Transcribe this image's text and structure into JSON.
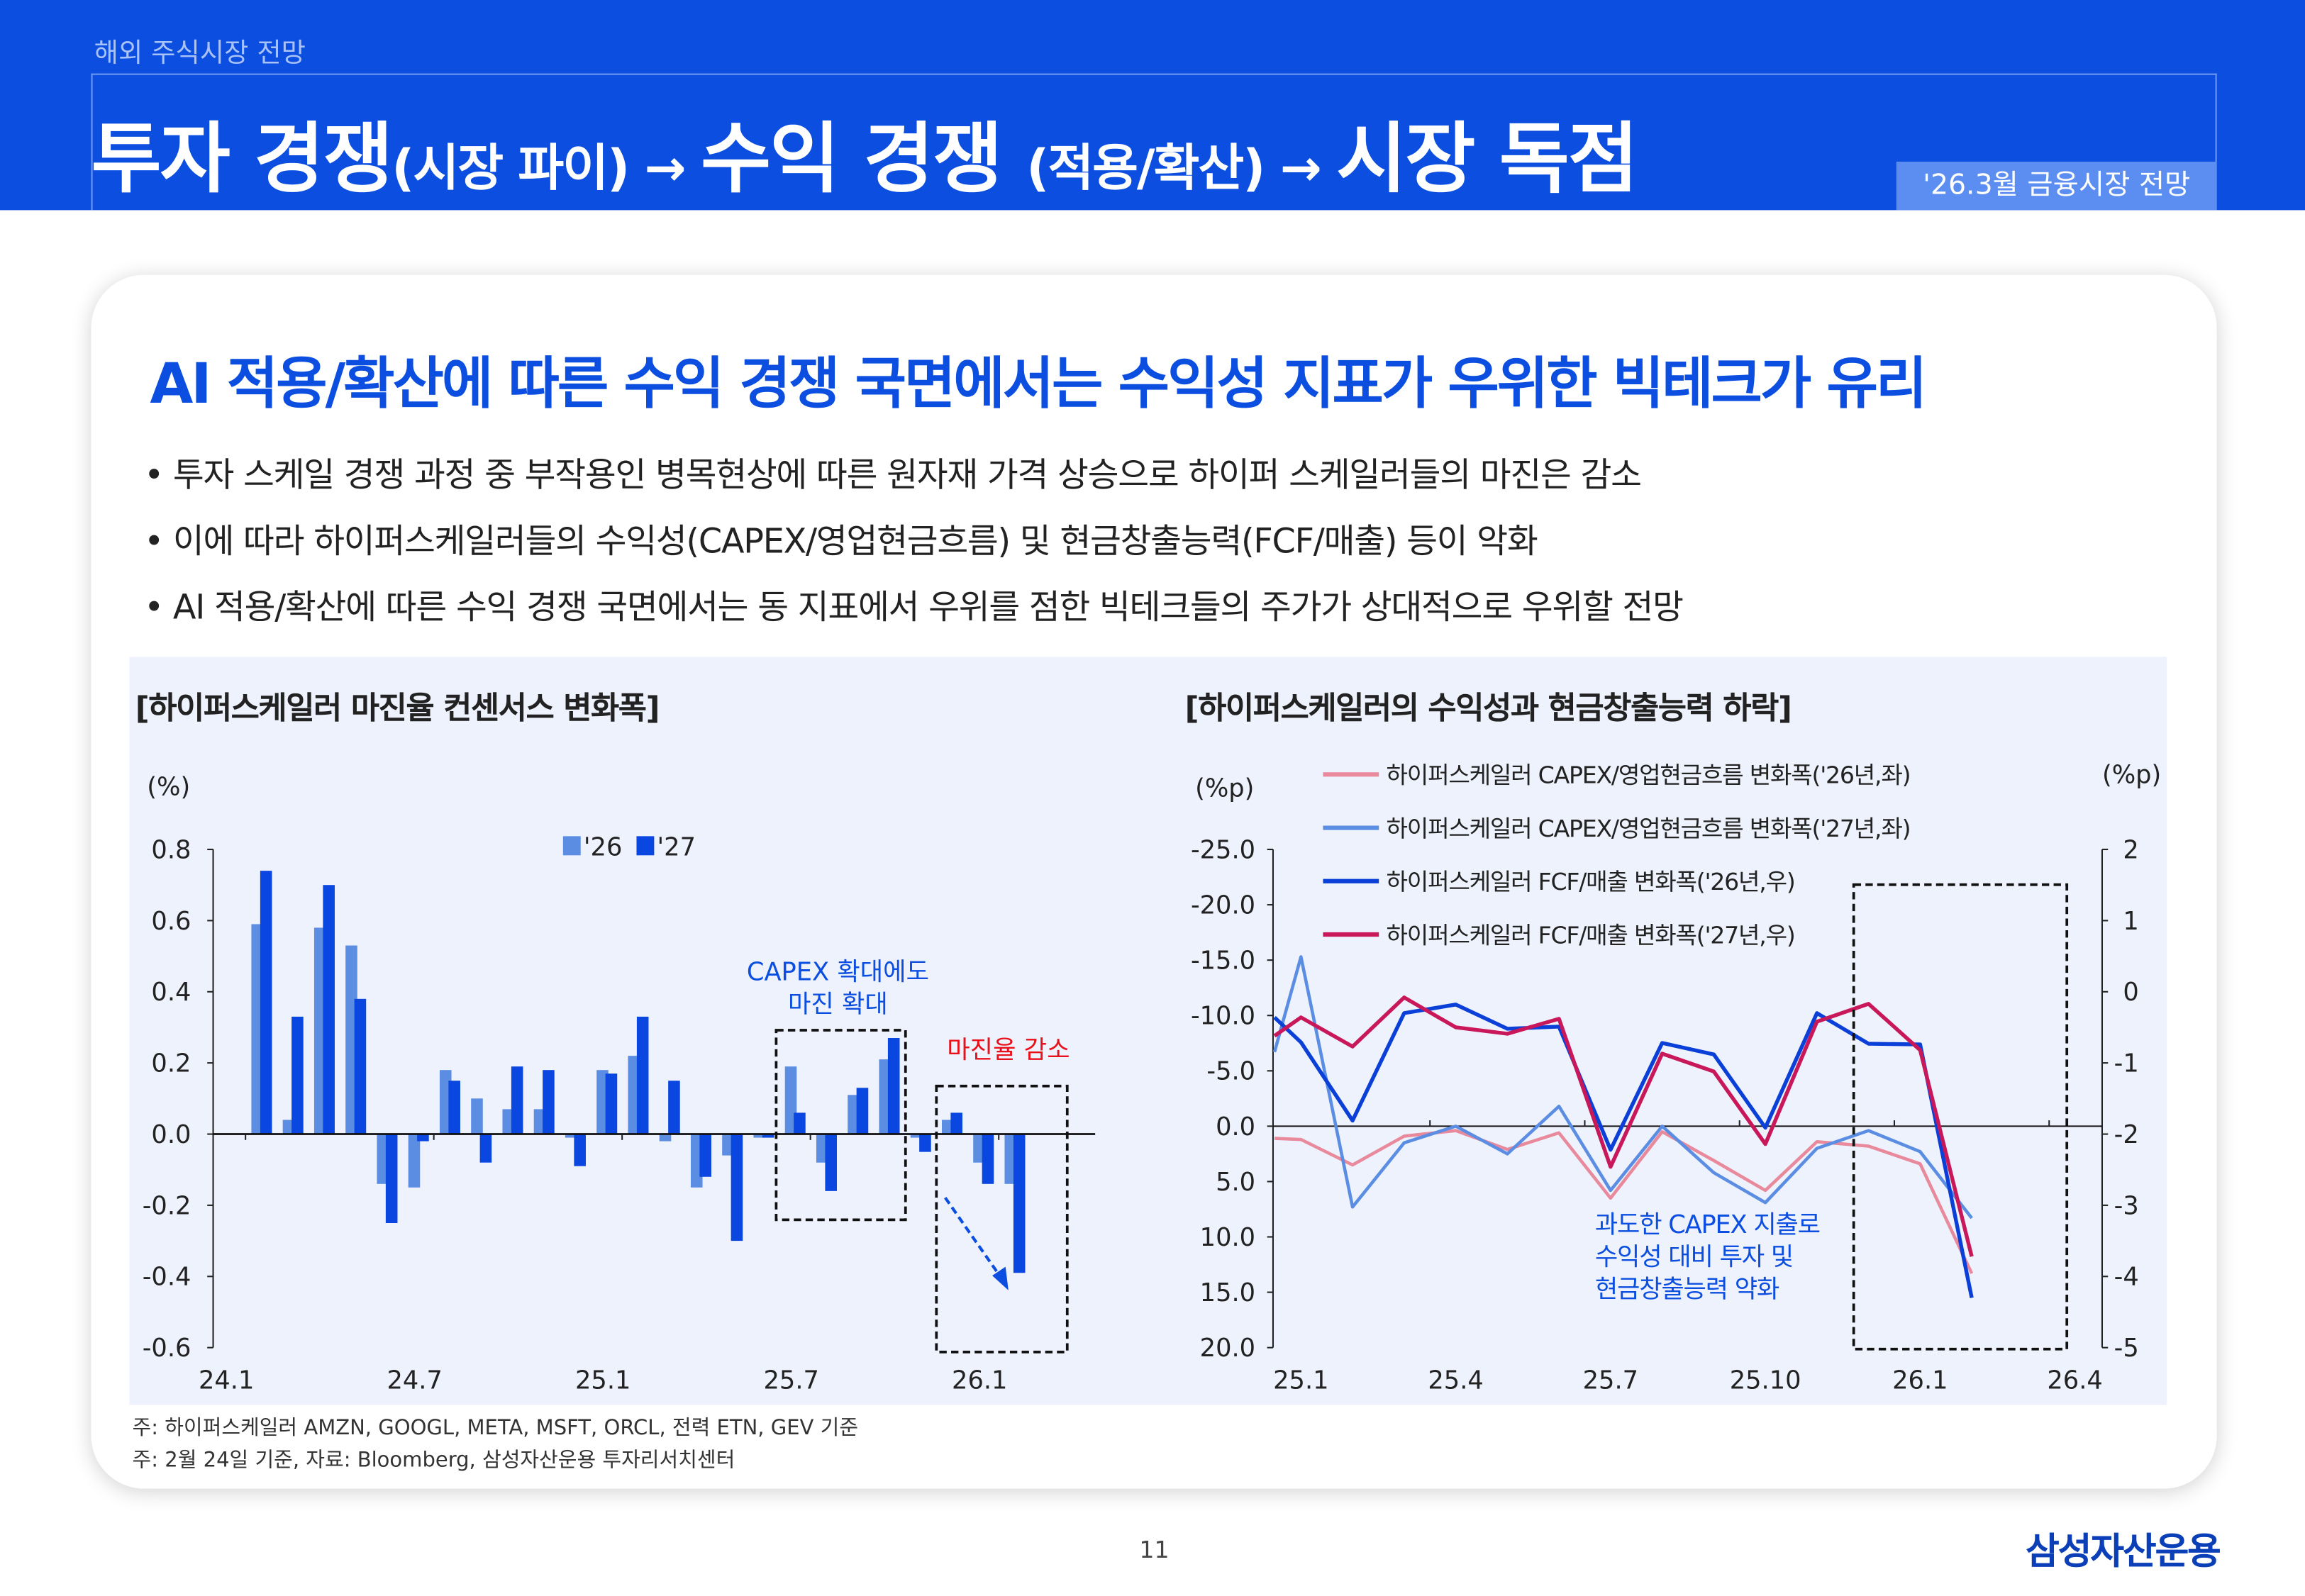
{
  "header": {
    "section": "해외 주식시장 전망",
    "title": [
      {
        "text": "투자 경쟁",
        "size": "b"
      },
      {
        "text": "(시장 파이) → ",
        "size": "s"
      },
      {
        "text": "수익 경쟁 ",
        "size": "b"
      },
      {
        "text": "(적용/확산) → ",
        "size": "s"
      },
      {
        "text": "시장 독점",
        "size": "b"
      }
    ],
    "badge": "'26.3월 금융시장 전망"
  },
  "heading": "AI 적용/확산에 따른 수익 경쟁 국면에서는 수익성 지표가 우위한 빅테크가 유리",
  "bullets": [
    "• 투자 스케일 경쟁 과정 중 부작용인 병목현상에 따른 원자재 가격 상승으로 하이퍼 스케일러들의 마진은 감소",
    "• 이에 따라 하이퍼스케일러들의 수익성(CAPEX/영업현금흐름) 및 현금창출능력(FCF/매출) 등이 악화",
    "• AI 적용/확산에 따른 수익 경쟁 국면에서는 동 지표에서 우위를 점한 빅테크들의 주가가 상대적으로 우위할 전망"
  ],
  "notes": [
    "주: 하이퍼스케일러 AMZN, GOOGL, META, MSFT, ORCL, 전력 ETN, GEV 기준",
    "주: 2월 24일 기준, 자료: Bloomberg, 삼성자산운용 투자리서치센터"
  ],
  "page_number": "11",
  "logo": "삼성자산운용",
  "chart_data": [
    {
      "type": "bar",
      "title": "[하이퍼스케일러 마진율 컨센서스 변화폭]",
      "ylabel": "(%)",
      "ylim": [
        -0.6,
        0.8
      ],
      "yticks": [
        "0.8",
        "0.6",
        "0.4",
        "0.2",
        "0.0",
        "-0.2",
        "-0.4",
        "-0.6"
      ],
      "xtick_labels": [
        "24.1",
        "24.7",
        "25.1",
        "25.7",
        "26.1"
      ],
      "categories": [
        "24.1",
        "24.2",
        "24.3",
        "24.4",
        "24.5",
        "24.6",
        "24.7",
        "24.8",
        "24.9",
        "24.10",
        "24.11",
        "24.12",
        "25.1",
        "25.2",
        "25.3",
        "25.4",
        "25.5",
        "25.6",
        "25.7",
        "25.8",
        "25.9",
        "25.10",
        "25.11",
        "25.12",
        "26.1"
      ],
      "series": [
        {
          "name": "'26",
          "color": "#5b8de3",
          "values": [
            0.59,
            0.04,
            0.58,
            0.53,
            -0.14,
            -0.15,
            0.18,
            0.1,
            0.07,
            0.07,
            -0.01,
            0.18,
            0.22,
            -0.02,
            -0.15,
            -0.06,
            -0.01,
            0.19,
            -0.08,
            0.11,
            0.21,
            -0.01,
            0.04,
            -0.08,
            -0.14
          ]
        },
        {
          "name": "'27",
          "color": "#0a46e0",
          "values": [
            0.74,
            0.33,
            0.7,
            0.38,
            -0.25,
            -0.02,
            0.15,
            -0.08,
            0.19,
            0.18,
            -0.09,
            0.17,
            0.33,
            0.15,
            -0.12,
            -0.3,
            -0.01,
            0.06,
            -0.16,
            0.13,
            0.27,
            -0.05,
            0.06,
            -0.14,
            -0.39
          ]
        }
      ],
      "legend": "top-center",
      "annotations": [
        {
          "text": [
            "CAPEX 확대에도",
            "마진 확대"
          ],
          "color": "#0b4ee0"
        },
        {
          "text": [
            "마진율 감소"
          ],
          "color": "#e8111b"
        }
      ]
    },
    {
      "type": "line",
      "title": "[하이퍼스케일러의 수익성과 현금창출능력 하락]",
      "ylabel_left": "(%p)",
      "ylabel_right": "(%p)",
      "ylim_left": [
        20,
        -25
      ],
      "left_axis_inverted": true,
      "ylim_right": [
        -5,
        2
      ],
      "yticks_left": [
        "-25.0",
        "-20.0",
        "-15.0",
        "-10.0",
        "-5.0",
        "0.0",
        "5.0",
        "10.0",
        "15.0",
        "20.0"
      ],
      "yticks_right": [
        "2",
        "1",
        "0",
        "-1",
        "-2",
        "-3",
        "-4",
        "-5"
      ],
      "xtick_labels": [
        "25.1",
        "25.4",
        "25.7",
        "25.10",
        "26.1",
        "26.4"
      ],
      "x": [
        "24.12",
        "25.1",
        "25.2",
        "25.3",
        "25.4",
        "25.5",
        "25.6",
        "25.7",
        "25.8",
        "25.9",
        "25.10",
        "25.11",
        "25.12",
        "26.1",
        "26.2"
      ],
      "series": [
        {
          "name": "하이퍼스케일러 CAPEX/영업현금흐름 변화폭('26년,좌)",
          "axis": "left",
          "color": "#e8899c",
          "values": [
            1.1,
            1.2,
            3.5,
            0.9,
            0.4,
            2.1,
            0.6,
            6.5,
            0.5,
            3.1,
            5.8,
            1.4,
            1.8,
            3.4,
            13.3
          ]
        },
        {
          "name": "하이퍼스케일러 CAPEX/영업현금흐름 변화폭('27년,좌)",
          "axis": "left",
          "color": "#5b8de3",
          "values": [
            -6.7,
            -15.3,
            7.3,
            1.5,
            0.0,
            2.5,
            -1.8,
            5.8,
            0.0,
            4.2,
            6.9,
            2.0,
            0.4,
            2.3,
            8.3
          ]
        },
        {
          "name": "하이퍼스케일러 FCF/매출 변화폭('26년,우)",
          "axis": "right",
          "color": "#0a3fd8",
          "values": [
            -0.36,
            -0.71,
            -1.81,
            -0.3,
            -0.18,
            -0.52,
            -0.49,
            -2.22,
            -0.72,
            -0.88,
            -1.91,
            -0.3,
            -0.73,
            -0.74,
            -4.3
          ]
        },
        {
          "name": "하이퍼스케일러 FCF/매출 변화폭('27년,우)",
          "axis": "right",
          "color": "#c8185a",
          "values": [
            -0.62,
            -0.36,
            -0.77,
            -0.08,
            -0.5,
            -0.59,
            -0.38,
            -2.46,
            -0.87,
            -1.12,
            -2.14,
            -0.42,
            -0.17,
            -0.82,
            -3.72
          ]
        }
      ],
      "legend": "top",
      "annotations": [
        {
          "text": [
            "과도한 CAPEX 지출로",
            "수익성 대비 투자 및",
            "현금창출능력 약화"
          ],
          "color": "#0b4ee0"
        }
      ]
    }
  ]
}
